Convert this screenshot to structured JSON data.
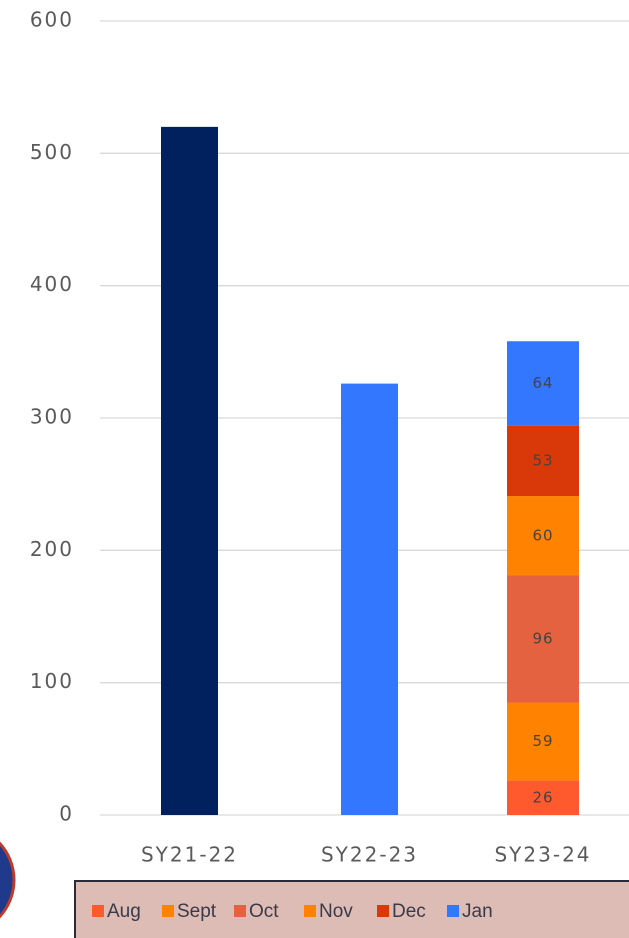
{
  "chart_data": {
    "type": "stacked-bar",
    "categories": [
      "SY21-22",
      "SY22-23",
      "SY23-24"
    ],
    "values": [
      520,
      326,
      null
    ],
    "bar_colors": [
      "#00215e",
      "#3377ff",
      null
    ],
    "series": [
      {
        "name": "Aug",
        "color": "#ff5a2e",
        "values": [
          null,
          null,
          26
        ]
      },
      {
        "name": "Sept",
        "color": "#ff8200",
        "values": [
          null,
          null,
          59
        ]
      },
      {
        "name": "Oct",
        "color": "#e46240",
        "values": [
          null,
          null,
          96
        ]
      },
      {
        "name": "Nov",
        "color": "#ff8200",
        "values": [
          null,
          null,
          60
        ]
      },
      {
        "name": "Dec",
        "color": "#d93808",
        "values": [
          null,
          null,
          53
        ]
      },
      {
        "name": "Jan",
        "color": "#3377ff",
        "values": [
          null,
          null,
          64
        ]
      }
    ],
    "ylim": [
      0,
      600
    ],
    "yticks": [
      0,
      100,
      200,
      300,
      400,
      500,
      600
    ],
    "grid": true,
    "legend": "bottom"
  }
}
